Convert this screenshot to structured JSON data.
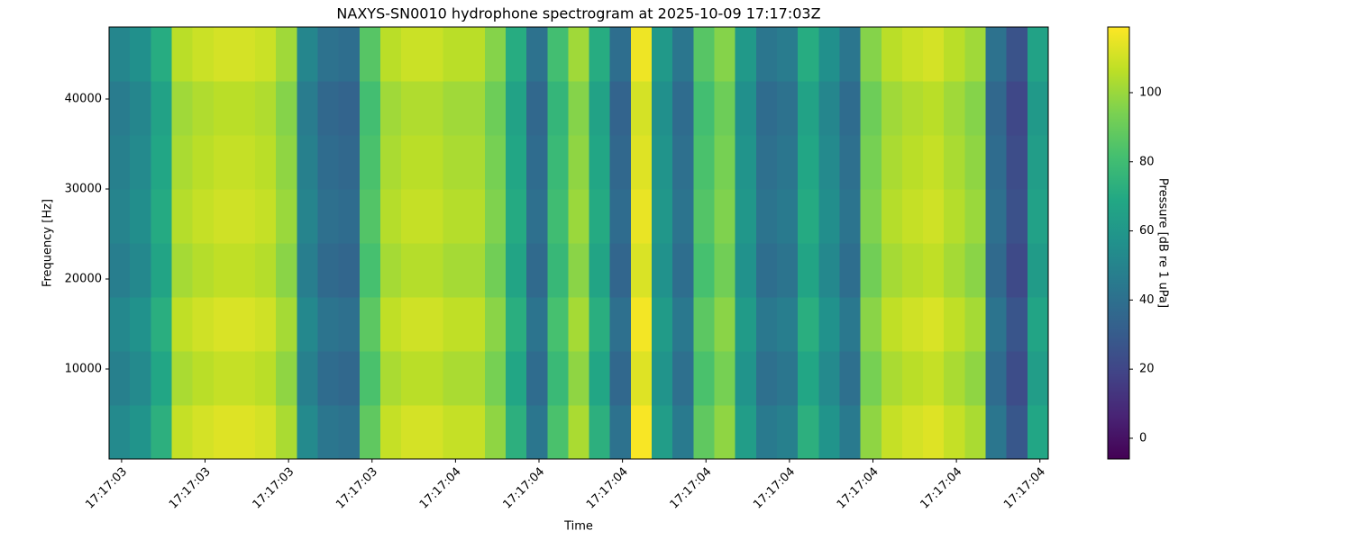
{
  "chart_data": {
    "type": "heatmap",
    "title": "NAXYS-SN0010 hydrophone spectrogram at 2025-10-09 17:17:03Z",
    "xlabel": "Time",
    "ylabel": "Frequency [Hz]",
    "colorbar_label": "Pressure [dB re 1 uPa]",
    "colormap": "viridis",
    "xlim": [
      0.585,
      1.71
    ],
    "ylim": [
      0,
      48000
    ],
    "clim": [
      -6,
      119
    ],
    "xticks": [
      {
        "value": 0.6,
        "label": "17:17:03"
      },
      {
        "value": 0.7,
        "label": "17:17:03"
      },
      {
        "value": 0.8,
        "label": "17:17:03"
      },
      {
        "value": 0.9,
        "label": "17:17:03"
      },
      {
        "value": 1.0,
        "label": "17:17:04"
      },
      {
        "value": 1.1,
        "label": "17:17:04"
      },
      {
        "value": 1.2,
        "label": "17:17:04"
      },
      {
        "value": 1.3,
        "label": "17:17:04"
      },
      {
        "value": 1.4,
        "label": "17:17:04"
      },
      {
        "value": 1.5,
        "label": "17:17:04"
      },
      {
        "value": 1.6,
        "label": "17:17:04"
      },
      {
        "value": 1.7,
        "label": "17:17:04"
      }
    ],
    "yticks": [
      10000,
      20000,
      30000,
      40000
    ],
    "cticks": [
      0,
      20,
      40,
      60,
      80,
      100
    ],
    "x": [
      0.585,
      0.61,
      0.635,
      0.66,
      0.685,
      0.71,
      0.735,
      0.76,
      0.785,
      0.81,
      0.835,
      0.86,
      0.885,
      0.91,
      0.935,
      0.96,
      0.985,
      1.01,
      1.035,
      1.06,
      1.085,
      1.11,
      1.135,
      1.16,
      1.185,
      1.21,
      1.235,
      1.26,
      1.285,
      1.31,
      1.335,
      1.36,
      1.385,
      1.41,
      1.435,
      1.46,
      1.485,
      1.51,
      1.535,
      1.56,
      1.585,
      1.61,
      1.635,
      1.66,
      1.685
    ],
    "y": [
      0,
      6000,
      12000,
      18000,
      24000,
      30000,
      36000,
      42000
    ],
    "z": [
      [
        53,
        58,
        73,
        108,
        111,
        113,
        113,
        111,
        103,
        53,
        43,
        41,
        88,
        108,
        111,
        111,
        108,
        108,
        98,
        73,
        43,
        83,
        103,
        73,
        41,
        118,
        63,
        45,
        88,
        98,
        63,
        45,
        48,
        73,
        58,
        45,
        98,
        108,
        111,
        113,
        108,
        103,
        43,
        28,
        68
      ],
      [
        48,
        53,
        68,
        103,
        106,
        108,
        108,
        106,
        98,
        48,
        38,
        36,
        83,
        103,
        106,
        106,
        103,
        103,
        93,
        68,
        38,
        78,
        98,
        68,
        36,
        113,
        58,
        40,
        83,
        93,
        58,
        40,
        43,
        68,
        53,
        40,
        93,
        103,
        106,
        108,
        103,
        98,
        38,
        23,
        63
      ],
      [
        52,
        57,
        72,
        107,
        110,
        112,
        112,
        110,
        102,
        52,
        42,
        40,
        87,
        107,
        110,
        110,
        107,
        107,
        97,
        72,
        42,
        82,
        102,
        72,
        40,
        117,
        62,
        44,
        87,
        97,
        62,
        44,
        47,
        72,
        57,
        44,
        97,
        107,
        110,
        112,
        107,
        102,
        42,
        27,
        67
      ],
      [
        47,
        52,
        67,
        102,
        105,
        107,
        107,
        105,
        97,
        47,
        37,
        35,
        82,
        102,
        105,
        105,
        102,
        102,
        92,
        67,
        37,
        77,
        97,
        67,
        35,
        112,
        57,
        39,
        82,
        92,
        57,
        39,
        42,
        67,
        52,
        39,
        92,
        102,
        105,
        107,
        102,
        97,
        37,
        22,
        62
      ],
      [
        50,
        55,
        70,
        105,
        108,
        110,
        110,
        108,
        100,
        50,
        40,
        38,
        85,
        105,
        108,
        108,
        105,
        105,
        95,
        70,
        40,
        80,
        100,
        70,
        38,
        115,
        60,
        42,
        85,
        95,
        60,
        42,
        45,
        70,
        55,
        42,
        95,
        105,
        108,
        110,
        105,
        100,
        40,
        25,
        65
      ],
      [
        48,
        53,
        68,
        103,
        106,
        108,
        108,
        106,
        98,
        48,
        38,
        36,
        83,
        103,
        106,
        106,
        103,
        103,
        93,
        68,
        38,
        78,
        98,
        68,
        36,
        113,
        58,
        40,
        83,
        93,
        58,
        40,
        43,
        68,
        53,
        40,
        93,
        103,
        106,
        108,
        103,
        98,
        38,
        23,
        63
      ],
      [
        46,
        51,
        66,
        101,
        104,
        106,
        106,
        104,
        96,
        46,
        36,
        34,
        81,
        101,
        104,
        104,
        101,
        101,
        91,
        66,
        36,
        76,
        96,
        66,
        34,
        111,
        56,
        38,
        81,
        91,
        56,
        38,
        41,
        66,
        51,
        38,
        91,
        101,
        104,
        106,
        101,
        96,
        36,
        21,
        61
      ],
      [
        51,
        56,
        71,
        106,
        109,
        111,
        111,
        109,
        101,
        51,
        41,
        39,
        86,
        106,
        109,
        109,
        106,
        106,
        96,
        71,
        41,
        81,
        101,
        71,
        39,
        116,
        61,
        43,
        86,
        96,
        61,
        43,
        46,
        71,
        56,
        43,
        96,
        106,
        109,
        111,
        106,
        101,
        41,
        26,
        66
      ]
    ]
  }
}
